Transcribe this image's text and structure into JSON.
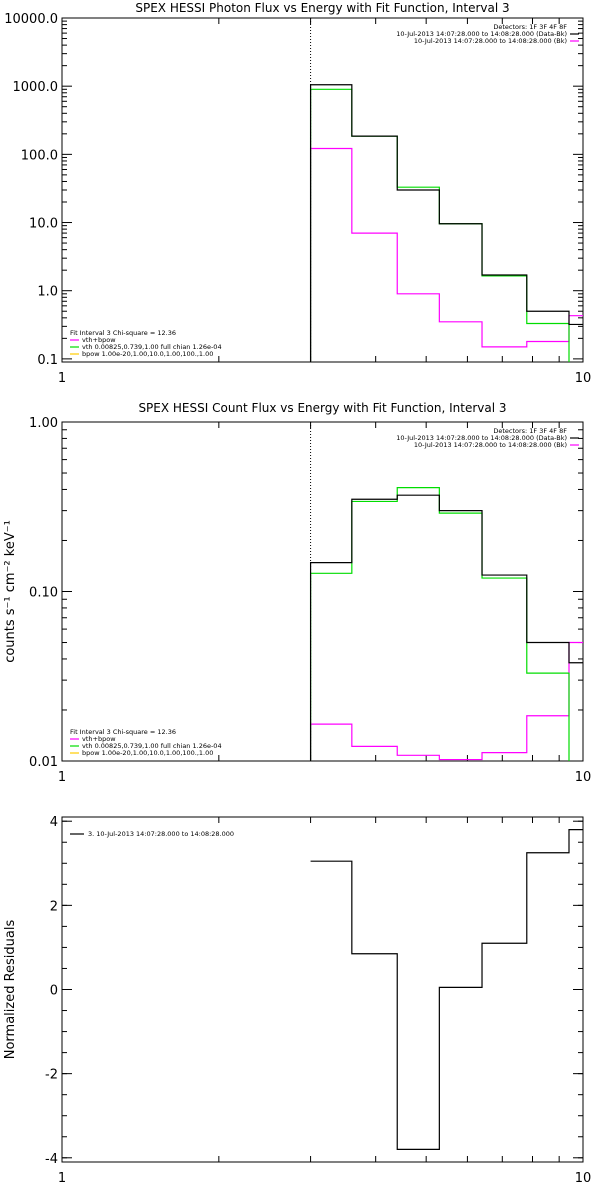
{
  "colors": {
    "background": "#ffffff",
    "axis": "#000000",
    "data_bk": "#000000",
    "fit_total": "#ff00ff",
    "vth": "#00dd00",
    "bpow": "#ffcc00",
    "marker": "#000000"
  },
  "chart_data": [
    {
      "type": "line",
      "step": true,
      "title": "SPEX HESSI Photon Flux vs Energy with Fit Function, Interval 3",
      "xlabel": "",
      "ylabel": "",
      "xscale": "log",
      "yscale": "log",
      "xlim": [
        1,
        10
      ],
      "ylim": [
        0.09,
        10000
      ],
      "xticks": [
        1,
        10
      ],
      "xtick_labels": [
        "1",
        "10"
      ],
      "yticks": [
        0.1,
        1,
        10,
        100,
        1000,
        10000
      ],
      "ytick_labels": [
        "0.1",
        "1.0",
        "10.0",
        "100.0",
        "1000.0",
        "10000.0"
      ],
      "vline_x": 3.0,
      "legend_top": [
        "Detectors: 1F 3F 4F 8F",
        "10-Jul-2013 14:07:28.000 to 14:08:28.000 (Data-Bk)",
        "10-Jul-2013 14:07:28.000 to 14:08:28.000 (Bk)"
      ],
      "legend_top_colors": [
        "#000000",
        "#ff00ff"
      ],
      "legend_bottom": [
        "Fit Interval 3   Chi-square = 12.36",
        "vth+bpow",
        "vth 0.00825,0.739,1.00  full chian 1.26e-04",
        "bpow 1.00e-20,1.00,10.0,1.00,100.,1.00"
      ],
      "legend_bottom_colors": [
        "#ff00ff",
        "#00dd00",
        "#ffcc00"
      ],
      "edges": [
        3.0,
        3.6,
        4.4,
        5.3,
        6.4,
        7.8,
        9.4,
        10.0
      ],
      "series": [
        {
          "name": "10-Jul-2013 14:07:28.000 to 14:08:28.000 (Data-Bk)",
          "color": "#000000",
          "values": [
            1050,
            185,
            30,
            9.6,
            1.7,
            0.5,
            0.32
          ]
        },
        {
          "name": "vth 0.00825,0.739,1.00  full chian 1.26e-04",
          "color": "#00dd00",
          "values": [
            900,
            185,
            33,
            9.6,
            1.65,
            0.33,
            0.08
          ]
        },
        {
          "name": "10-Jul-2013 14:07:28.000 to 14:08:28.000 (Bk)",
          "color": "#ff00ff",
          "values": [
            122,
            7,
            0.9,
            0.35,
            0.15,
            0.18,
            0.43
          ]
        }
      ]
    },
    {
      "type": "line",
      "step": true,
      "title": "SPEX HESSI Count Flux vs Energy with Fit Function, Interval 3",
      "xlabel": "",
      "ylabel": "counts s⁻¹ cm⁻² keV⁻¹",
      "xscale": "log",
      "yscale": "log",
      "xlim": [
        1,
        10
      ],
      "ylim": [
        0.01,
        1.0
      ],
      "xticks": [
        1,
        10
      ],
      "xtick_labels": [
        "1",
        "10"
      ],
      "yticks": [
        0.01,
        0.1,
        1.0
      ],
      "ytick_labels": [
        "0.01",
        "0.10",
        "1.00"
      ],
      "vline_x": 3.0,
      "legend_top": [
        "Detectors: 1F 3F 4F 8F",
        "10-Jul-2013 14:07:28.000 to 14:08:28.000 (Data-Bk)",
        "10-Jul-2013 14:07:28.000 to 14:08:28.000 (Bk)"
      ],
      "legend_top_colors": [
        "#000000",
        "#ff00ff"
      ],
      "legend_bottom": [
        "Fit Interval 3   Chi-square = 12.36",
        "vth+bpow",
        "vth 0.00825,0.739,1.00  full chian 1.26e-04",
        "bpow 1.00e-20,1.00,10.0,1.00,100.,1.00"
      ],
      "legend_bottom_colors": [
        "#ff00ff",
        "#00dd00",
        "#ffcc00"
      ],
      "edges": [
        3.0,
        3.6,
        4.4,
        5.3,
        6.4,
        7.8,
        9.4,
        10.0
      ],
      "series": [
        {
          "name": "10-Jul-2013 14:07:28.000 to 14:08:28.000 (Data-Bk)",
          "color": "#000000",
          "values": [
            0.148,
            0.35,
            0.37,
            0.3,
            0.125,
            0.05,
            0.038
          ]
        },
        {
          "name": "vth 0.00825,0.739,1.00  full chian 1.26e-04",
          "color": "#00dd00",
          "values": [
            0.128,
            0.34,
            0.41,
            0.29,
            0.12,
            0.033,
            0.008
          ]
        },
        {
          "name": "10-Jul-2013 14:07:28.000 to 14:08:28.000 (Bk)",
          "color": "#ff00ff",
          "values": [
            0.0165,
            0.0122,
            0.0108,
            0.0102,
            0.0112,
            0.0185,
            0.05
          ]
        }
      ]
    },
    {
      "type": "line",
      "step": true,
      "title": "",
      "xlabel": "",
      "ylabel": "Normalized Residuals",
      "xscale": "log",
      "yscale": "linear",
      "xlim": [
        1,
        10
      ],
      "ylim": [
        -4.1,
        4.1
      ],
      "xticks": [
        1,
        10
      ],
      "xtick_labels": [
        "1",
        "10"
      ],
      "yticks": [
        -4,
        -2,
        0,
        2,
        4
      ],
      "ytick_labels": [
        "-4",
        "-2",
        "0",
        "2",
        "4"
      ],
      "legend": [
        "3. 10-Jul-2013 14:07:28.000 to 14:08:28.000"
      ],
      "edges": [
        3.0,
        3.6,
        4.4,
        5.3,
        6.4,
        7.8,
        9.4,
        10.0
      ],
      "series": [
        {
          "name": "3. 10-Jul-2013 14:07:28.000 to 14:08:28.000",
          "color": "#000000",
          "values": [
            3.05,
            0.85,
            -3.8,
            0.05,
            1.1,
            3.25,
            3.8
          ]
        }
      ]
    }
  ]
}
